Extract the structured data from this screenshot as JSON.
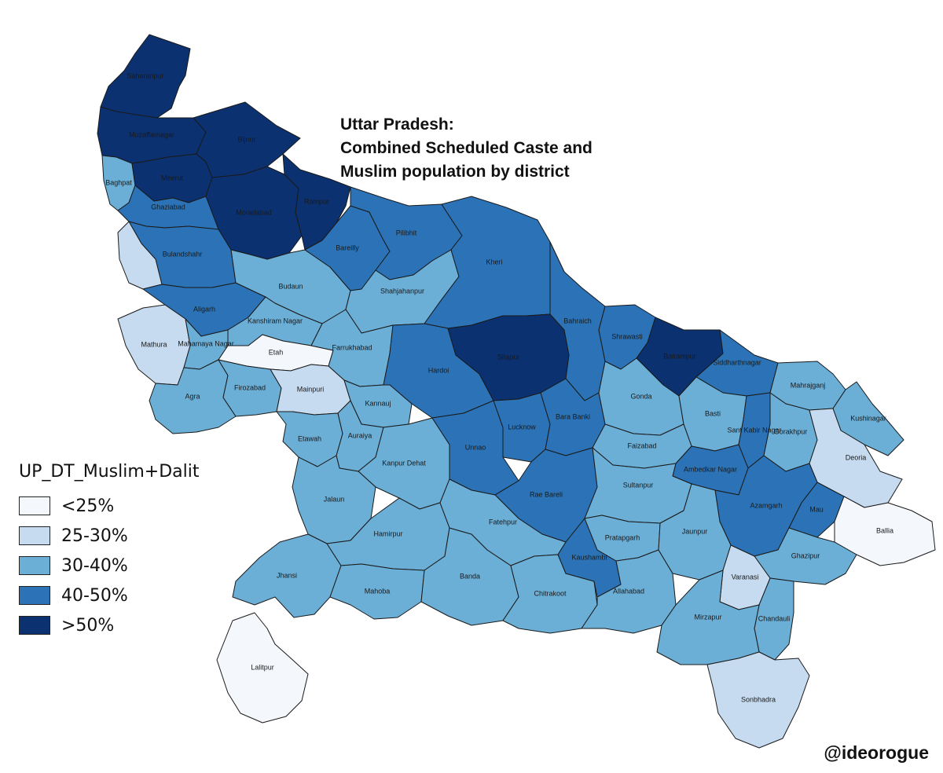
{
  "title": {
    "line1": "Uttar Pradesh:",
    "line2": "Combined Scheduled Caste and",
    "line3": "Muslim population by district"
  },
  "legend": {
    "title": "UP_DT_Muslim+Dalit",
    "items": [
      {
        "label": "<25%",
        "color": "#f4f8fd"
      },
      {
        "label": "25-30%",
        "color": "#c6dbef"
      },
      {
        "label": "30-40%",
        "color": "#6baed6"
      },
      {
        "label": "40-50%",
        "color": "#2b73b6"
      },
      {
        "label": ">50%",
        "color": "#0b3170"
      }
    ]
  },
  "credit": "@ideorogue",
  "map": {
    "districts": [
      {
        "name": "Saharanpur",
        "class": 4
      },
      {
        "name": "Muzaffarnagar",
        "class": 4
      },
      {
        "name": "Bijnor",
        "class": 4
      },
      {
        "name": "Meerut",
        "class": 4
      },
      {
        "name": "Moradabad",
        "class": 4
      },
      {
        "name": "Rampur",
        "class": 4
      },
      {
        "name": "Sitapur",
        "class": 4
      },
      {
        "name": "Balrampur",
        "class": 4
      },
      {
        "name": "Baghpat",
        "class": 2
      },
      {
        "name": "Ghaziabad",
        "class": 3
      },
      {
        "name": "Bulandshahr",
        "class": 3
      },
      {
        "name": "Aligarh",
        "class": 3
      },
      {
        "name": "Bareilly",
        "class": 3
      },
      {
        "name": "Pilibhit",
        "class": 3
      },
      {
        "name": "Kheri",
        "class": 3
      },
      {
        "name": "Bahraich",
        "class": 3
      },
      {
        "name": "Shrawasti",
        "class": 3
      },
      {
        "name": "Hardoi",
        "class": 3
      },
      {
        "name": "Lucknow",
        "class": 3
      },
      {
        "name": "Bara Banki",
        "class": 3
      },
      {
        "name": "Unnao",
        "class": 3
      },
      {
        "name": "Rae Bareli",
        "class": 3
      },
      {
        "name": "Siddharthnagar",
        "class": 3
      },
      {
        "name": "Sant Kabir Nagar",
        "class": 3
      },
      {
        "name": "Ambedkar Nagar",
        "class": 3
      },
      {
        "name": "Azamgarh",
        "class": 3
      },
      {
        "name": "Mau",
        "class": 3
      },
      {
        "name": "Kaushambi",
        "class": 3
      },
      {
        "name": "Mathura",
        "class": 1
      },
      {
        "name": "Mainpuri",
        "class": 1
      },
      {
        "name": "Deoria",
        "class": 1
      },
      {
        "name": "Varanasi",
        "class": 1
      },
      {
        "name": "Sonbhadra",
        "class": 1
      },
      {
        "name": "Etah",
        "class": 0
      },
      {
        "name": "Ballia",
        "class": 0
      },
      {
        "name": "Lalitpur",
        "class": 0
      },
      {
        "name": "Budaun",
        "class": 2
      },
      {
        "name": "Shahjahanpur",
        "class": 2
      },
      {
        "name": "Kanshiram Nagar",
        "class": 2
      },
      {
        "name": "Mahamaya Nagar",
        "class": 2
      },
      {
        "name": "Farrukhabad",
        "class": 2
      },
      {
        "name": "Agra",
        "class": 2
      },
      {
        "name": "Firozabad",
        "class": 2
      },
      {
        "name": "Kannauj",
        "class": 2
      },
      {
        "name": "Etawah",
        "class": 2
      },
      {
        "name": "Auraiya",
        "class": 2
      },
      {
        "name": "Kanpur Dehat",
        "class": 2
      },
      {
        "name": "Jalaun",
        "class": 2
      },
      {
        "name": "Jhansi",
        "class": 2
      },
      {
        "name": "Hamirpur",
        "class": 2
      },
      {
        "name": "Mahoba",
        "class": 2
      },
      {
        "name": "Banda",
        "class": 2
      },
      {
        "name": "Chitrakoot",
        "class": 2
      },
      {
        "name": "Fatehpur",
        "class": 2
      },
      {
        "name": "Pratapgarh",
        "class": 2
      },
      {
        "name": "Sultanpur",
        "class": 2
      },
      {
        "name": "Faizabad",
        "class": 2
      },
      {
        "name": "Gonda",
        "class": 2
      },
      {
        "name": "Basti",
        "class": 2
      },
      {
        "name": "Gorakhpur",
        "class": 2
      },
      {
        "name": "Mahrajganj",
        "class": 2
      },
      {
        "name": "Kushinagar",
        "class": 2
      },
      {
        "name": "Jaunpur",
        "class": 2
      },
      {
        "name": "Ghazipur",
        "class": 2
      },
      {
        "name": "Chandauli",
        "class": 2
      },
      {
        "name": "Allahabad",
        "class": 2
      },
      {
        "name": "Mirzapur",
        "class": 2
      }
    ]
  }
}
